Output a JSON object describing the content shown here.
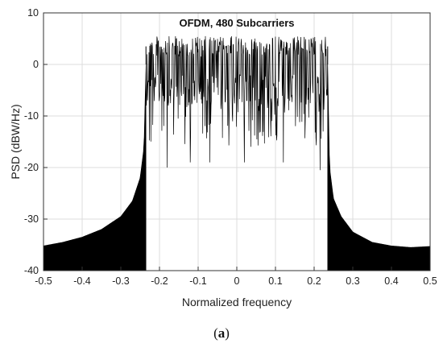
{
  "chart_data": {
    "type": "line",
    "title": "OFDM, 480 Subcarriers",
    "xlabel": "Normalized frequency",
    "ylabel": "PSD (dBW/Hz)",
    "xlim": [
      -0.5,
      0.5
    ],
    "ylim": [
      -40,
      10
    ],
    "xticks": [
      "-0.5",
      "-0.4",
      "-0.3",
      "-0.2",
      "-0.1",
      "0",
      "0.1",
      "0.2",
      "0.3",
      "0.4",
      "0.5"
    ],
    "yticks": [
      "10",
      "0",
      "-10",
      "-20",
      "-30",
      "-40"
    ],
    "grid": true,
    "filled_below": true,
    "series": [
      {
        "name": "",
        "color": "#000000",
        "left_sideband": {
          "x": [
            -0.5,
            -0.45,
            -0.4,
            -0.35,
            -0.3,
            -0.27,
            -0.25,
            -0.24,
            -0.235
          ],
          "y": [
            -35.2,
            -34.5,
            -33.5,
            -32.0,
            -29.5,
            -26.5,
            -22.0,
            -16.0,
            0.0
          ]
        },
        "inband": {
          "x": [
            -0.235,
            0.235
          ],
          "peak_level": 5.5,
          "mean_level": -2.0,
          "deepest_notches": [
            -20.0,
            -19.0,
            -19.0,
            -19.0,
            -19.0,
            -20.5
          ]
        },
        "right_sideband": {
          "x": [
            0.235,
            0.24,
            0.25,
            0.27,
            0.3,
            0.35,
            0.4,
            0.45,
            0.5
          ],
          "y": [
            0.0,
            -20.0,
            -26.0,
            -29.5,
            -32.5,
            -34.5,
            -35.2,
            -35.5,
            -35.3
          ]
        }
      }
    ]
  },
  "caption": {
    "open": "(",
    "letter": "a",
    "close": ")"
  }
}
